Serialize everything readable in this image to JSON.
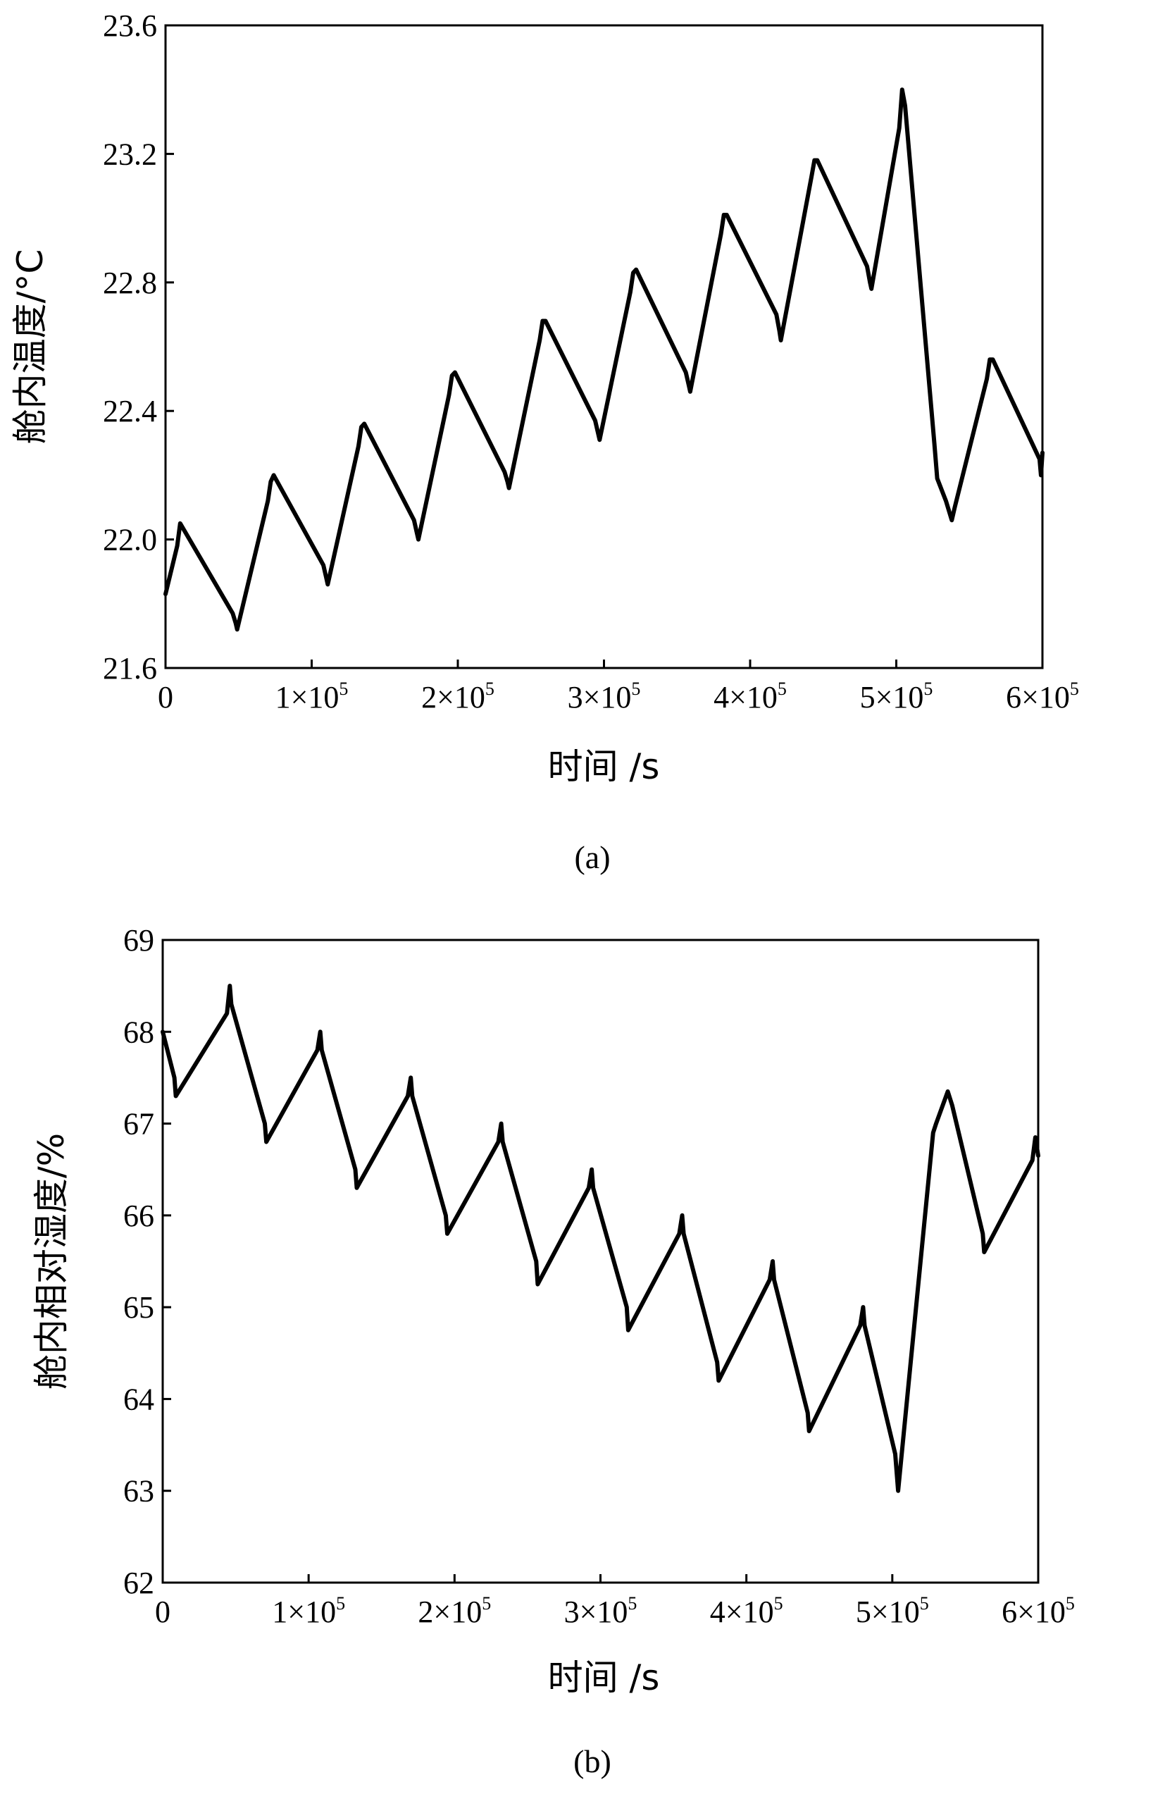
{
  "chart_data": [
    {
      "type": "line",
      "ylabel": "舱内温度/°C",
      "xlabel": "时间 /s",
      "caption": "(a)",
      "xlim": [
        0,
        600000
      ],
      "ylim": [
        21.6,
        23.6
      ],
      "x_ticks": [
        {
          "label": "0",
          "exp": ""
        },
        {
          "label": "1×10",
          "exp": "5"
        },
        {
          "label": "2×10",
          "exp": "5"
        },
        {
          "label": "3×10",
          "exp": "5"
        },
        {
          "label": "4×10",
          "exp": "5"
        },
        {
          "label": "5×10",
          "exp": "5"
        },
        {
          "label": "6×10",
          "exp": "5"
        }
      ],
      "y_ticks": [
        "21.6",
        "22.0",
        "22.4",
        "22.8",
        "23.2",
        "23.6"
      ],
      "grid": false,
      "series": [
        {
          "color": "#000000",
          "x": [
            0,
            8000,
            10000,
            46000,
            48000,
            49000,
            70000,
            72000,
            74000,
            108000,
            110000,
            111000,
            132000,
            134000,
            136000,
            170000,
            172000,
            173000,
            194000,
            196000,
            198000,
            232000,
            234000,
            235000,
            256000,
            258000,
            260000,
            294000,
            296000,
            297000,
            318000,
            320000,
            322000,
            356000,
            358000,
            359000,
            380000,
            382000,
            384000,
            418000,
            420000,
            421000,
            442000,
            444000,
            446000,
            480000,
            482000,
            483000,
            502000,
            504000,
            506000,
            526000,
            528000,
            534000,
            538000,
            540000,
            562000,
            564000,
            566000,
            598000,
            599000,
            600000
          ],
          "y": [
            21.83,
            21.98,
            22.05,
            21.77,
            21.74,
            21.72,
            22.12,
            22.18,
            22.2,
            21.92,
            21.88,
            21.86,
            22.29,
            22.35,
            22.36,
            22.06,
            22.02,
            22.0,
            22.45,
            22.51,
            22.52,
            22.21,
            22.18,
            22.16,
            22.62,
            22.68,
            22.68,
            22.37,
            22.33,
            22.31,
            22.77,
            22.83,
            22.84,
            22.52,
            22.48,
            22.46,
            22.95,
            23.01,
            23.01,
            22.7,
            22.65,
            22.62,
            23.13,
            23.18,
            23.18,
            22.85,
            22.8,
            22.78,
            23.28,
            23.4,
            23.35,
            22.3,
            22.19,
            22.12,
            22.06,
            22.1,
            22.5,
            22.56,
            22.56,
            22.25,
            22.2,
            22.27
          ]
        }
      ]
    },
    {
      "type": "line",
      "ylabel": "舱内相对湿度/%",
      "xlabel": "时间 /s",
      "caption": "(b)",
      "xlim": [
        0,
        600000
      ],
      "ylim": [
        62,
        69
      ],
      "x_ticks": [
        {
          "label": "0",
          "exp": ""
        },
        {
          "label": "1×10",
          "exp": "5"
        },
        {
          "label": "2×10",
          "exp": "5"
        },
        {
          "label": "3×10",
          "exp": "5"
        },
        {
          "label": "4×10",
          "exp": "5"
        },
        {
          "label": "5×10",
          "exp": "5"
        },
        {
          "label": "6×10",
          "exp": "5"
        }
      ],
      "y_ticks": [
        "62",
        "63",
        "64",
        "65",
        "66",
        "67",
        "68",
        "69"
      ],
      "grid": false,
      "series": [
        {
          "color": "#000000",
          "x": [
            0,
            8000,
            9000,
            44000,
            46000,
            47000,
            70000,
            71000,
            106000,
            108000,
            109000,
            132000,
            133000,
            168000,
            170000,
            171000,
            194000,
            195000,
            230000,
            232000,
            233000,
            256000,
            257000,
            292000,
            294000,
            295000,
            318000,
            319000,
            354000,
            356000,
            357000,
            380000,
            381000,
            416000,
            418000,
            419000,
            442000,
            443000,
            478000,
            480000,
            481000,
            502000,
            504000,
            528000,
            530000,
            538000,
            541000,
            562000,
            563000,
            596000,
            598000,
            600000
          ],
          "y": [
            68.0,
            67.5,
            67.3,
            68.2,
            68.5,
            68.3,
            67.0,
            66.8,
            67.8,
            68.0,
            67.8,
            66.5,
            66.3,
            67.3,
            67.5,
            67.3,
            66.0,
            65.8,
            66.8,
            67.0,
            66.8,
            65.5,
            65.25,
            66.3,
            66.5,
            66.3,
            65.0,
            64.75,
            65.8,
            66.0,
            65.8,
            64.4,
            64.2,
            65.3,
            65.5,
            65.3,
            63.85,
            63.65,
            64.8,
            65.0,
            64.8,
            63.4,
            63.0,
            66.9,
            67.0,
            67.35,
            67.2,
            65.8,
            65.6,
            66.6,
            66.85,
            66.65
          ]
        }
      ]
    }
  ]
}
